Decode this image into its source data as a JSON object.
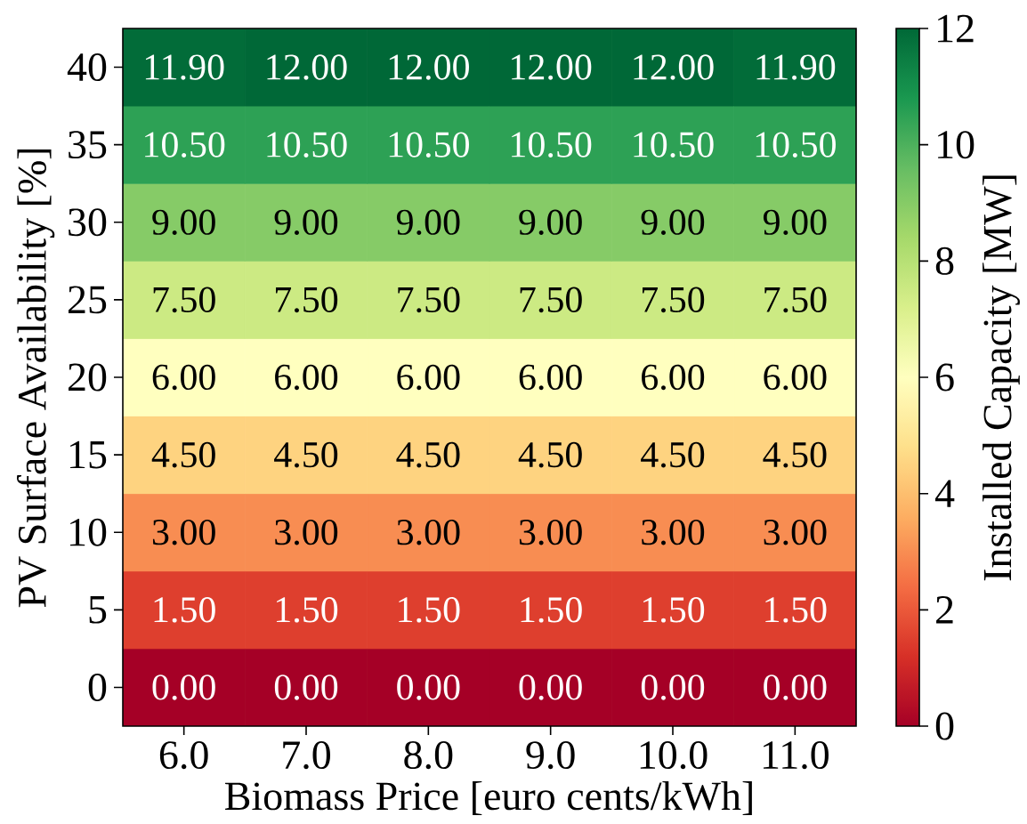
{
  "chart_data": {
    "type": "heatmap",
    "xlabel": "Biomass Price [euro cents/kWh]",
    "ylabel": "PV Surface Availability [%]",
    "clabel": "Installed Capacity [MW]",
    "categories": [
      "6.0",
      "7.0",
      "8.0",
      "9.0",
      "10.0",
      "11.0"
    ],
    "y_categories": [
      "40",
      "35",
      "30",
      "25",
      "20",
      "15",
      "10",
      "5",
      "0"
    ],
    "cells": [
      [
        11.9,
        12,
        12,
        12,
        12,
        11.9
      ],
      [
        10.5,
        10.5,
        10.5,
        10.5,
        10.5,
        10.5
      ],
      [
        9,
        9,
        9,
        9,
        9,
        9
      ],
      [
        7.5,
        7.5,
        7.5,
        7.5,
        7.5,
        7.5
      ],
      [
        6,
        6,
        6,
        6,
        6,
        6
      ],
      [
        4.5,
        4.5,
        4.5,
        4.5,
        4.5,
        4.5
      ],
      [
        3,
        3,
        3,
        3,
        3,
        3
      ],
      [
        1.5,
        1.5,
        1.5,
        1.5,
        1.5,
        1.5
      ],
      [
        0,
        0,
        0,
        0,
        0,
        0
      ]
    ],
    "cell_labels": [
      [
        "11.90",
        "12.00",
        "12.00",
        "12.00",
        "12.00",
        "11.90"
      ],
      [
        "10.50",
        "10.50",
        "10.50",
        "10.50",
        "10.50",
        "10.50"
      ],
      [
        "9.00",
        "9.00",
        "9.00",
        "9.00",
        "9.00",
        "9.00"
      ],
      [
        "7.50",
        "7.50",
        "7.50",
        "7.50",
        "7.50",
        "7.50"
      ],
      [
        "6.00",
        "6.00",
        "6.00",
        "6.00",
        "6.00",
        "6.00"
      ],
      [
        "4.50",
        "4.50",
        "4.50",
        "4.50",
        "4.50",
        "4.50"
      ],
      [
        "3.00",
        "3.00",
        "3.00",
        "3.00",
        "3.00",
        "3.00"
      ],
      [
        "1.50",
        "1.50",
        "1.50",
        "1.50",
        "1.50",
        "1.50"
      ],
      [
        "0.00",
        "0.00",
        "0.00",
        "0.00",
        "0.00",
        "0.00"
      ]
    ],
    "clim": [
      0,
      12
    ],
    "cticks": [
      0,
      2,
      4,
      6,
      8,
      10,
      12
    ]
  }
}
